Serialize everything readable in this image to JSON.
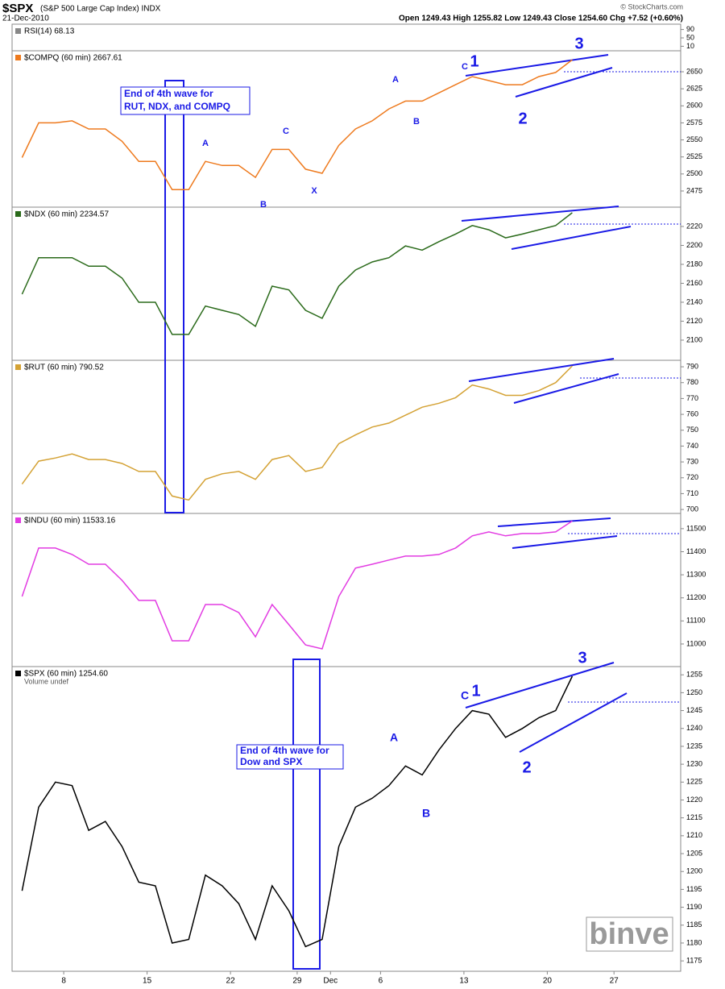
{
  "header": {
    "symbol": "$SPX",
    "name": "(S&P 500 Large Cap Index) INDX",
    "date": "21-Dec-2010",
    "quote": "Open 1249.43 High 1255.82 Low 1249.43 Close 1254.60 Chg +7.52 (+0.60%)",
    "credit": "© StockCharts.com",
    "watermark": "binve"
  },
  "chart_data": [
    {
      "type": "line",
      "title": "RSI(14) 68.13",
      "ylim": [
        0,
        100
      ],
      "yticks": [
        10,
        50,
        90
      ]
    },
    {
      "type": "line",
      "title": "$COMPQ (60 min) 2667.61",
      "color": "#ee7a1e",
      "values": [
        2524,
        2575,
        2575,
        2578,
        2566,
        2566,
        2548,
        2518.5,
        2518.5,
        2477,
        2477,
        2518.5,
        2512.5,
        2512.5,
        2495,
        2536,
        2536,
        2507,
        2501,
        2542,
        2566,
        2578,
        2595.5,
        2607,
        2607,
        2619,
        2631,
        2643,
        2637,
        2631,
        2631,
        2643,
        2649,
        2667.61,
        null,
        null,
        null,
        null,
        null,
        null
      ],
      "ylim": [
        2451.3,
        2680.8
      ],
      "yticks": [
        2475,
        2500,
        2525,
        2550,
        2575,
        2600,
        2625,
        2650
      ],
      "annotations": {
        "note": [
          "End of 4th wave for",
          "RUT, NDX, and COMPQ"
        ],
        "waves": [
          "A",
          "B",
          "C",
          "X",
          "A",
          "B",
          "C",
          "1",
          "2",
          "3"
        ]
      }
    },
    {
      "type": "line",
      "title": "$NDX (60 min) 2234.57",
      "color": "#2a6a1a",
      "values": [
        2148.5,
        2187,
        2187,
        2187,
        2178,
        2178,
        2165.5,
        2140,
        2140,
        2106,
        2106,
        2136,
        2131.5,
        2127,
        2114.5,
        2157,
        2153,
        2131.5,
        2123,
        2157,
        2174,
        2182.5,
        2187,
        2199.5,
        2195,
        2204,
        2212,
        2221,
        2216.5,
        2208,
        2212,
        2216.5,
        2221,
        2234.57,
        null,
        null,
        null,
        null,
        null,
        null
      ],
      "ylim": [
        2078.7,
        2240.4
      ],
      "yticks": [
        2100,
        2120,
        2140,
        2160,
        2180,
        2200,
        2220
      ]
    },
    {
      "type": "line",
      "title": "$RUT (60 min) 790.52",
      "color": "#d4a235",
      "values": [
        716,
        730.5,
        732.5,
        735,
        731.5,
        731.5,
        729,
        724,
        724,
        708.5,
        706,
        719,
        722.5,
        724,
        719,
        731.5,
        734,
        724,
        726.5,
        741.5,
        747,
        752,
        754.5,
        759.5,
        764.5,
        767,
        770.5,
        778.5,
        776,
        772,
        772,
        775,
        780,
        790.52,
        null,
        null,
        null,
        null,
        null,
        null
      ],
      "ylim": [
        697.5,
        794.1
      ],
      "yticks": [
        700,
        710,
        720,
        730,
        740,
        750,
        760,
        770,
        780,
        790
      ]
    },
    {
      "type": "line",
      "title": "$INDU (60 min) 11533.16",
      "color": "#e23be2",
      "values": [
        11206,
        11416,
        11416,
        11388,
        11346,
        11346,
        11276,
        11189,
        11189,
        11014,
        11014,
        11171,
        11171,
        11136,
        11031,
        11171,
        11084,
        10996,
        10979,
        11206,
        11329,
        11346,
        11364,
        11381,
        11381,
        11388,
        11416,
        11469,
        11486,
        11469,
        11479,
        11479,
        11486,
        11533.16,
        null,
        null,
        null,
        null,
        null,
        null
      ],
      "ylim": [
        10902,
        11566
      ],
      "yticks": [
        11000,
        11100,
        11200,
        11300,
        11400,
        11500
      ]
    },
    {
      "type": "line",
      "title": "$SPX (60 min) 1254.60",
      "subtitle": "Volume undef",
      "color": "#000000",
      "categories": [
        null,
        null,
        null,
        "8",
        null,
        null,
        null,
        null,
        "15",
        null,
        null,
        null,
        null,
        "22",
        null,
        null,
        null,
        "29",
        null,
        "Dec",
        null,
        null,
        "6",
        null,
        null,
        null,
        null,
        "13",
        null,
        null,
        null,
        null,
        "20",
        null,
        null,
        null,
        "27",
        null,
        null,
        null
      ],
      "values": [
        1194.6,
        1218,
        1225,
        1224,
        1211.5,
        1214,
        1207,
        1197,
        1196,
        1180,
        1181,
        1199,
        1196,
        1191,
        1181,
        1196,
        1189,
        1179,
        1181,
        1207,
        1218,
        1220.5,
        1224,
        1229.5,
        1227,
        1234,
        1240,
        1245,
        1244,
        1237.5,
        1240,
        1243,
        1245,
        1254.6,
        null,
        null,
        null,
        null,
        null,
        null
      ],
      "ylim": [
        1172.1,
        1257.3
      ],
      "yticks": [
        1175,
        1180,
        1185,
        1190,
        1195,
        1200,
        1205,
        1210,
        1215,
        1220,
        1225,
        1230,
        1235,
        1240,
        1245,
        1250,
        1255
      ],
      "annotations": {
        "note": [
          "End of 4th wave for",
          "Dow and SPX"
        ],
        "waves": [
          "A",
          "B",
          "C",
          "1",
          "2",
          "3"
        ]
      }
    }
  ]
}
